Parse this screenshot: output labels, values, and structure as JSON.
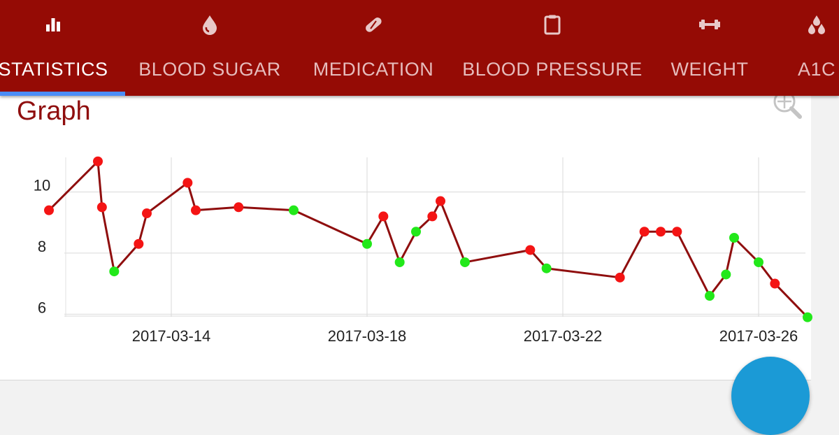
{
  "tabs": [
    {
      "label": "STATISTICS",
      "icon": "bar-chart-icon",
      "active": true
    },
    {
      "label": "BLOOD SUGAR",
      "icon": "drop-icon",
      "active": false
    },
    {
      "label": "MEDICATION",
      "icon": "pill-icon",
      "active": false
    },
    {
      "label": "BLOOD PRESSURE",
      "icon": "clipboard-icon",
      "active": false
    },
    {
      "label": "WEIGHT",
      "icon": "dumbbell-icon",
      "active": false
    },
    {
      "label": "A1C",
      "icon": "drops-icon",
      "active": false
    }
  ],
  "card": {
    "title": "Graph",
    "zoom_icon": "zoom-icon"
  },
  "colors": {
    "appbar": "#950b05",
    "indicator": "#4b8df8",
    "line": "#8f0e0e",
    "in_range": "#22e81a",
    "out_of_range": "#f41414",
    "fab": "#1b9ad6"
  },
  "chart_data": {
    "type": "line",
    "x_unit": "date",
    "x_ticks": [
      "2017-03-14",
      "2017-03-18",
      "2017-03-22",
      "2017-03-26"
    ],
    "y_ticks": [
      6,
      8,
      10
    ],
    "ylim": [
      5.8,
      11.2
    ],
    "xlim": [
      "2017-03-11T12:00",
      "2017-03-27T00:00"
    ],
    "grid": true,
    "series": [
      {
        "points": [
          {
            "x": "2017-03-11T12:00",
            "y": 9.4,
            "color": "red"
          },
          {
            "x": "2017-03-12T12:00",
            "y": 11.0,
            "color": "red"
          },
          {
            "x": "2017-03-12T14:00",
            "y": 9.5,
            "color": "red"
          },
          {
            "x": "2017-03-12T20:00",
            "y": 7.4,
            "color": "green"
          },
          {
            "x": "2017-03-13T08:00",
            "y": 8.3,
            "color": "red"
          },
          {
            "x": "2017-03-13T12:00",
            "y": 9.3,
            "color": "red"
          },
          {
            "x": "2017-03-14T08:00",
            "y": 10.3,
            "color": "red"
          },
          {
            "x": "2017-03-14T12:00",
            "y": 9.4,
            "color": "red"
          },
          {
            "x": "2017-03-15T09:00",
            "y": 9.5,
            "color": "red"
          },
          {
            "x": "2017-03-16T12:00",
            "y": 9.4,
            "color": "green"
          },
          {
            "x": "2017-03-18T00:00",
            "y": 8.3,
            "color": "green"
          },
          {
            "x": "2017-03-18T08:00",
            "y": 9.2,
            "color": "red"
          },
          {
            "x": "2017-03-18T16:00",
            "y": 7.7,
            "color": "green"
          },
          {
            "x": "2017-03-19T00:00",
            "y": 8.7,
            "color": "green"
          },
          {
            "x": "2017-03-19T08:00",
            "y": 9.2,
            "color": "red"
          },
          {
            "x": "2017-03-19T12:00",
            "y": 9.7,
            "color": "red"
          },
          {
            "x": "2017-03-20T00:00",
            "y": 7.7,
            "color": "green"
          },
          {
            "x": "2017-03-21T08:00",
            "y": 8.1,
            "color": "red"
          },
          {
            "x": "2017-03-21T16:00",
            "y": 7.5,
            "color": "green"
          },
          {
            "x": "2017-03-23T04:00",
            "y": 7.2,
            "color": "red"
          },
          {
            "x": "2017-03-23T16:00",
            "y": 8.7,
            "color": "red"
          },
          {
            "x": "2017-03-24T00:00",
            "y": 8.7,
            "color": "red"
          },
          {
            "x": "2017-03-24T08:00",
            "y": 8.7,
            "color": "red"
          },
          {
            "x": "2017-03-25T00:00",
            "y": 6.6,
            "color": "green"
          },
          {
            "x": "2017-03-25T08:00",
            "y": 7.3,
            "color": "green"
          },
          {
            "x": "2017-03-25T12:00",
            "y": 8.5,
            "color": "green"
          },
          {
            "x": "2017-03-26T00:00",
            "y": 7.7,
            "color": "green"
          },
          {
            "x": "2017-03-26T08:00",
            "y": 7.0,
            "color": "red"
          },
          {
            "x": "2017-03-27T00:00",
            "y": 5.9,
            "color": "green"
          }
        ]
      }
    ]
  }
}
